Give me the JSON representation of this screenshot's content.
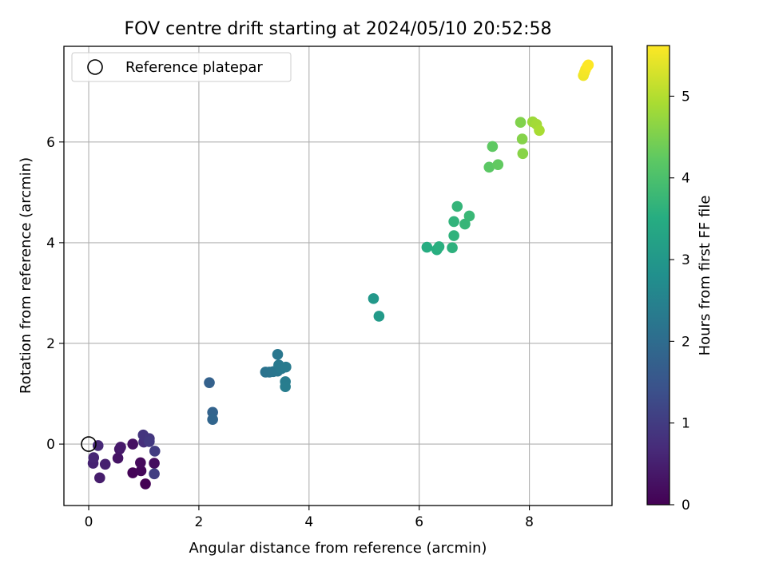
{
  "chart_data": {
    "type": "scatter",
    "title": "FOV centre drift starting at 2024/05/10 20:52:58",
    "xlabel": "Angular distance from reference (arcmin)",
    "ylabel": "Rotation from reference (arcmin)",
    "xlim": [
      -0.45,
      9.5
    ],
    "ylim": [
      -1.22,
      7.9
    ],
    "xticks": [
      "0",
      "2",
      "4",
      "6",
      "8"
    ],
    "yticks": [
      "0",
      "2",
      "4",
      "6"
    ],
    "grid": true,
    "legend": {
      "placement": "top-left",
      "label": "Reference platepar"
    },
    "reference_point": {
      "x": 0,
      "y": 0
    },
    "colorbar": {
      "label": "Hours from first FF file",
      "range": [
        0,
        5.62
      ],
      "ticks": [
        "0",
        "1",
        "2",
        "3",
        "4",
        "5"
      ],
      "colormap": "viridis"
    },
    "points": [
      {
        "x": 1.03,
        "y": -0.79,
        "h": 0.0
      },
      {
        "x": 0.8,
        "y": -0.57,
        "h": 0.05
      },
      {
        "x": 0.95,
        "y": -0.53,
        "h": 0.1
      },
      {
        "x": 0.94,
        "y": -0.37,
        "h": 0.15
      },
      {
        "x": 1.19,
        "y": -0.38,
        "h": 0.2
      },
      {
        "x": 0.8,
        "y": 0.0,
        "h": 0.25
      },
      {
        "x": 0.53,
        "y": -0.28,
        "h": 0.3
      },
      {
        "x": 0.56,
        "y": -0.1,
        "h": 0.35
      },
      {
        "x": 0.58,
        "y": -0.06,
        "h": 0.4
      },
      {
        "x": 0.2,
        "y": -0.67,
        "h": 0.45
      },
      {
        "x": 0.3,
        "y": -0.4,
        "h": 0.5
      },
      {
        "x": 0.08,
        "y": -0.38,
        "h": 0.55
      },
      {
        "x": 0.09,
        "y": -0.27,
        "h": 0.6
      },
      {
        "x": 0.17,
        "y": -0.03,
        "h": 0.65
      },
      {
        "x": 1.0,
        "y": 0.04,
        "h": 0.75
      },
      {
        "x": 1.06,
        "y": 0.1,
        "h": 0.8
      },
      {
        "x": 0.99,
        "y": 0.18,
        "h": 0.85
      },
      {
        "x": 1.1,
        "y": 0.11,
        "h": 0.9
      },
      {
        "x": 1.1,
        "y": 0.05,
        "h": 0.95
      },
      {
        "x": 1.2,
        "y": -0.14,
        "h": 1.0
      },
      {
        "x": 1.19,
        "y": -0.59,
        "h": 1.05
      },
      {
        "x": 2.19,
        "y": 1.22,
        "h": 1.75
      },
      {
        "x": 2.25,
        "y": 0.63,
        "h": 1.8
      },
      {
        "x": 2.25,
        "y": 0.49,
        "h": 1.85
      },
      {
        "x": 3.21,
        "y": 1.43,
        "h": 2.15
      },
      {
        "x": 3.28,
        "y": 1.43,
        "h": 2.18
      },
      {
        "x": 3.35,
        "y": 1.44,
        "h": 2.2
      },
      {
        "x": 3.43,
        "y": 1.45,
        "h": 2.22
      },
      {
        "x": 3.43,
        "y": 1.78,
        "h": 2.25
      },
      {
        "x": 3.45,
        "y": 1.57,
        "h": 2.28
      },
      {
        "x": 3.5,
        "y": 1.5,
        "h": 2.3
      },
      {
        "x": 3.58,
        "y": 1.53,
        "h": 2.33
      },
      {
        "x": 3.57,
        "y": 1.24,
        "h": 2.35
      },
      {
        "x": 3.57,
        "y": 1.14,
        "h": 2.38
      },
      {
        "x": 5.17,
        "y": 2.89,
        "h": 3.0
      },
      {
        "x": 5.27,
        "y": 2.54,
        "h": 3.05
      },
      {
        "x": 6.14,
        "y": 3.91,
        "h": 3.5
      },
      {
        "x": 6.32,
        "y": 3.86,
        "h": 3.53
      },
      {
        "x": 6.36,
        "y": 3.92,
        "h": 3.56
      },
      {
        "x": 6.6,
        "y": 3.9,
        "h": 3.6
      },
      {
        "x": 6.63,
        "y": 4.14,
        "h": 3.63
      },
      {
        "x": 6.63,
        "y": 4.42,
        "h": 3.66
      },
      {
        "x": 6.69,
        "y": 4.72,
        "h": 3.7
      },
      {
        "x": 6.83,
        "y": 4.37,
        "h": 3.73
      },
      {
        "x": 6.91,
        "y": 4.53,
        "h": 3.76
      },
      {
        "x": 7.27,
        "y": 5.5,
        "h": 4.2
      },
      {
        "x": 7.33,
        "y": 5.91,
        "h": 4.23
      },
      {
        "x": 7.43,
        "y": 5.55,
        "h": 4.26
      },
      {
        "x": 7.84,
        "y": 6.39,
        "h": 4.55
      },
      {
        "x": 7.87,
        "y": 6.06,
        "h": 4.58
      },
      {
        "x": 7.88,
        "y": 5.77,
        "h": 4.61
      },
      {
        "x": 8.06,
        "y": 6.4,
        "h": 4.8
      },
      {
        "x": 8.13,
        "y": 6.35,
        "h": 4.85
      },
      {
        "x": 8.18,
        "y": 6.23,
        "h": 4.9
      },
      {
        "x": 8.98,
        "y": 7.32,
        "h": 5.5
      },
      {
        "x": 9.0,
        "y": 7.38,
        "h": 5.53
      },
      {
        "x": 9.02,
        "y": 7.44,
        "h": 5.56
      },
      {
        "x": 9.05,
        "y": 7.5,
        "h": 5.59
      },
      {
        "x": 9.07,
        "y": 7.53,
        "h": 5.62
      }
    ]
  }
}
